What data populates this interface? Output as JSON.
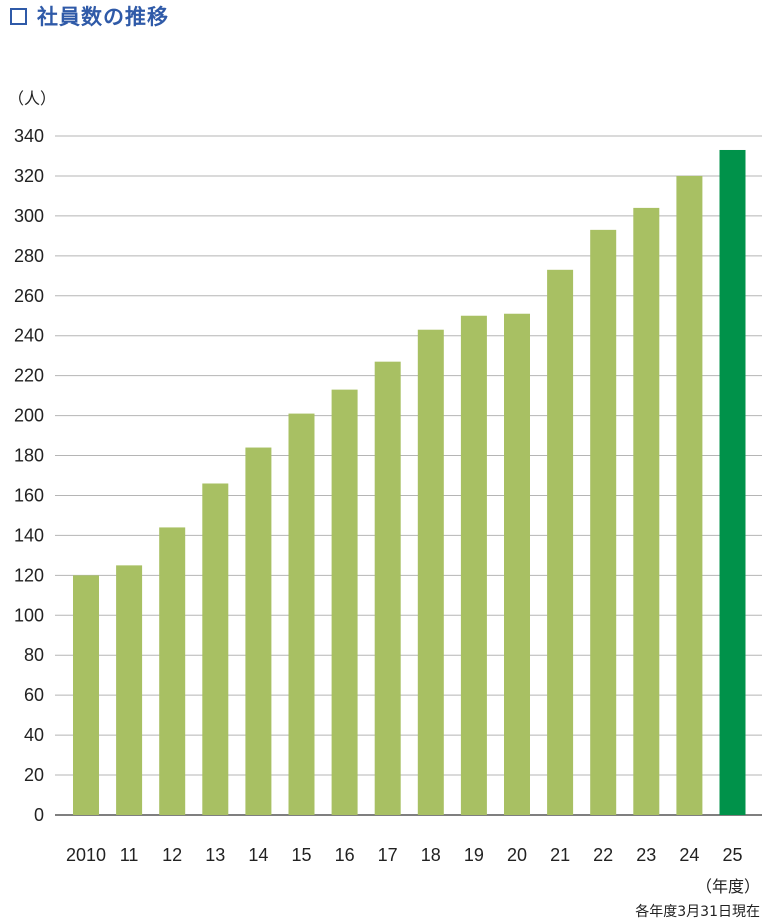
{
  "title": "社員数の推移",
  "chart_data": {
    "type": "bar",
    "title": "社員数の推移",
    "ylabel": "（人）",
    "xlabel": "（年度）",
    "note": "各年度3月31日現在",
    "categories": [
      "2010",
      "11",
      "12",
      "13",
      "14",
      "15",
      "16",
      "17",
      "18",
      "19",
      "20",
      "21",
      "22",
      "23",
      "24",
      "25"
    ],
    "values": [
      120,
      125,
      144,
      166,
      184,
      201,
      213,
      227,
      243,
      250,
      251,
      273,
      293,
      304,
      320,
      333
    ],
    "ylim": [
      0,
      340
    ],
    "yticks": [
      0,
      20,
      40,
      60,
      80,
      100,
      120,
      140,
      160,
      180,
      200,
      220,
      240,
      260,
      280,
      300,
      320,
      340
    ],
    "grid": true,
    "colors": {
      "bar": "#a8c063",
      "highlight": "#00924a",
      "grid": "#b5b5b5",
      "title": "#2f5aa8"
    },
    "highlight_index": 15
  }
}
